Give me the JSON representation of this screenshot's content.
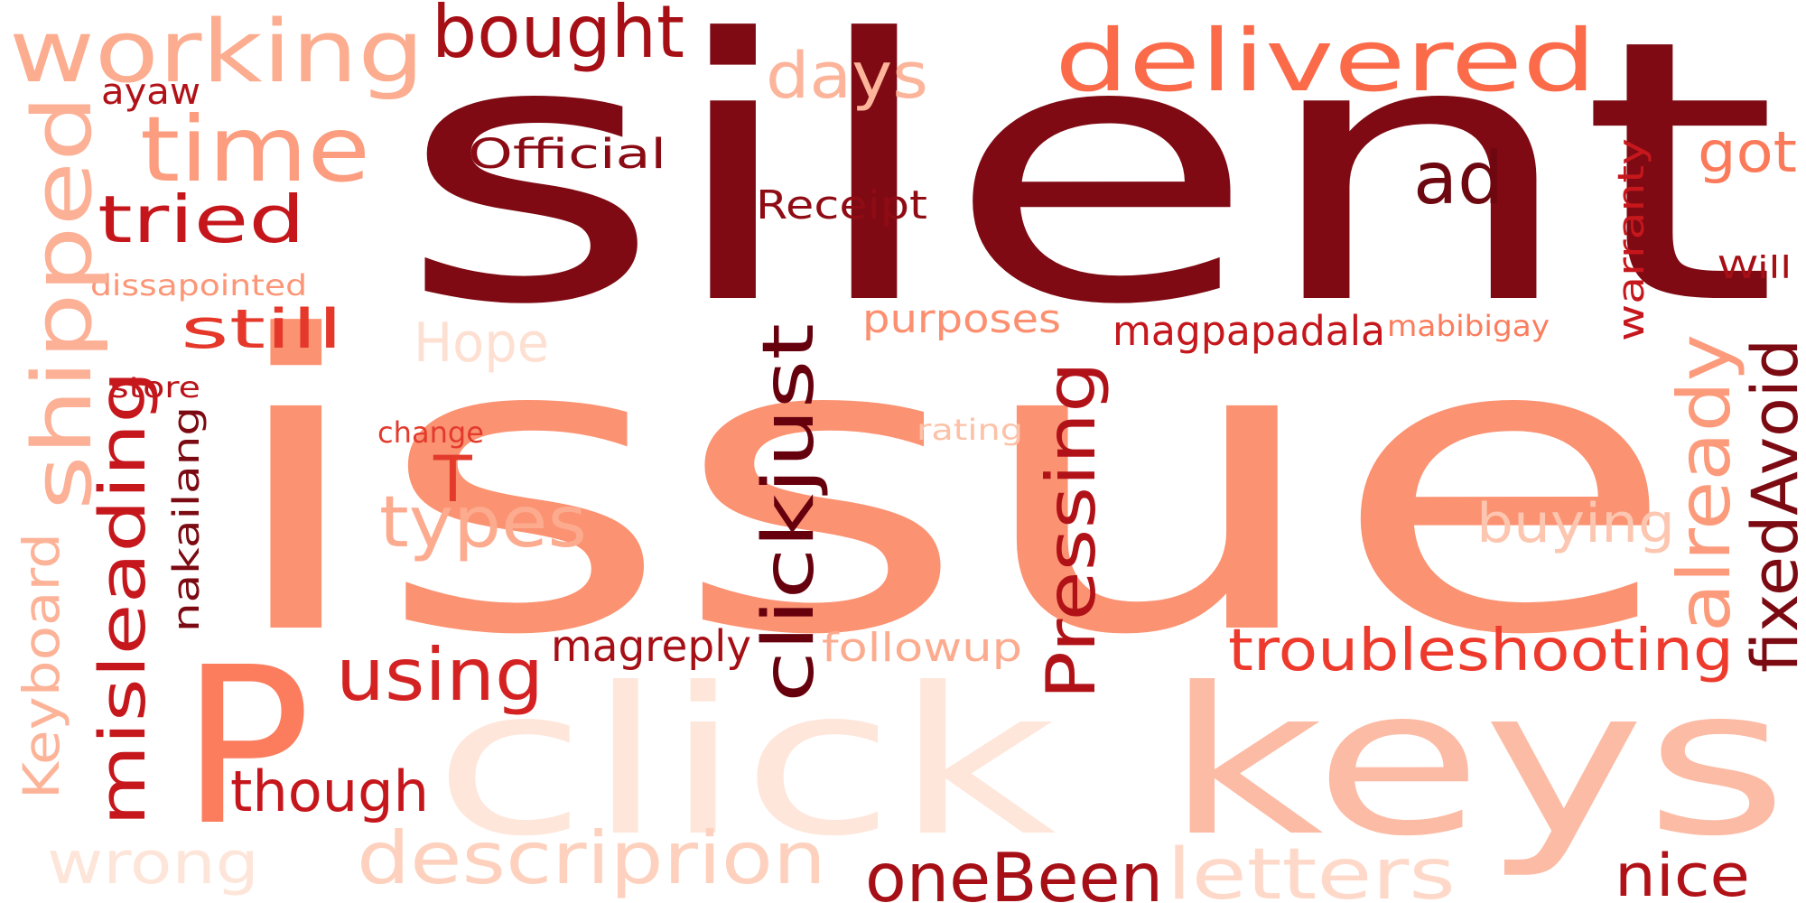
{
  "word_cloud": {
    "words": [
      {
        "text": "silent",
        "color": "#7f0a13"
      },
      {
        "text": "issue",
        "color": "#fb9272"
      },
      {
        "text": "click",
        "color": "#fee6da"
      },
      {
        "text": "keys",
        "color": "#fcbba4"
      },
      {
        "text": "P",
        "color": "#fb7d5d"
      },
      {
        "text": "working",
        "color": "#fcac8f"
      },
      {
        "text": "bought",
        "color": "#a50f15"
      },
      {
        "text": "delivered",
        "color": "#fb6b4a"
      },
      {
        "text": "time",
        "color": "#fb9d7e"
      },
      {
        "text": "days",
        "color": "#fcb49a"
      },
      {
        "text": "shipped",
        "color": "#fcb095"
      },
      {
        "text": "tried",
        "color": "#c5161c"
      },
      {
        "text": "Official",
        "color": "#8b0b15"
      },
      {
        "text": "Receipt",
        "color": "#8f0c15"
      },
      {
        "text": "ad",
        "color": "#6e0810"
      },
      {
        "text": "got",
        "color": "#fb7a5a"
      },
      {
        "text": "ayaw",
        "color": "#b11218"
      },
      {
        "text": "dissapointed",
        "color": "#fc9677"
      },
      {
        "text": "still",
        "color": "#e5382b"
      },
      {
        "text": "Hope",
        "color": "#fee0d2"
      },
      {
        "text": "purposes",
        "color": "#fc8f6f"
      },
      {
        "text": "magpapadala",
        "color": "#c5171c"
      },
      {
        "text": "mabibigay",
        "color": "#fb7d5d"
      },
      {
        "text": "warranty",
        "color": "#c5171c"
      },
      {
        "text": "Will",
        "color": "#a50f15"
      },
      {
        "text": "store",
        "color": "#ba141a"
      },
      {
        "text": "change",
        "color": "#e33a2c"
      },
      {
        "text": "rating",
        "color": "#fcc1a7"
      },
      {
        "text": "nakailang",
        "color": "#7c0a12"
      },
      {
        "text": "misleading",
        "color": "#c5171c"
      },
      {
        "text": "Keyboard",
        "color": "#fcb398"
      },
      {
        "text": "T",
        "color": "#e33a2c"
      },
      {
        "text": "types",
        "color": "#fcab8f"
      },
      {
        "text": "clickjust",
        "color": "#67000d"
      },
      {
        "text": "Pressing",
        "color": "#b11218"
      },
      {
        "text": "already",
        "color": "#fc9b7c"
      },
      {
        "text": "fixedAvoid",
        "color": "#7c0a12"
      },
      {
        "text": "buying",
        "color": "#fcc6b0"
      },
      {
        "text": "using",
        "color": "#d42121"
      },
      {
        "text": "magreply",
        "color": "#a50f15"
      },
      {
        "text": "followup",
        "color": "#fcab8f"
      },
      {
        "text": "troubleshooting",
        "color": "#ee3a2c"
      },
      {
        "text": "though",
        "color": "#c5161c"
      },
      {
        "text": "wrong",
        "color": "#fee5d9"
      },
      {
        "text": "descriprion",
        "color": "#fdd1bd"
      },
      {
        "text": "oneBeen",
        "color": "#a50f15"
      },
      {
        "text": "letters",
        "color": "#fed9c9"
      },
      {
        "text": "nice",
        "color": "#b11218"
      }
    ]
  }
}
